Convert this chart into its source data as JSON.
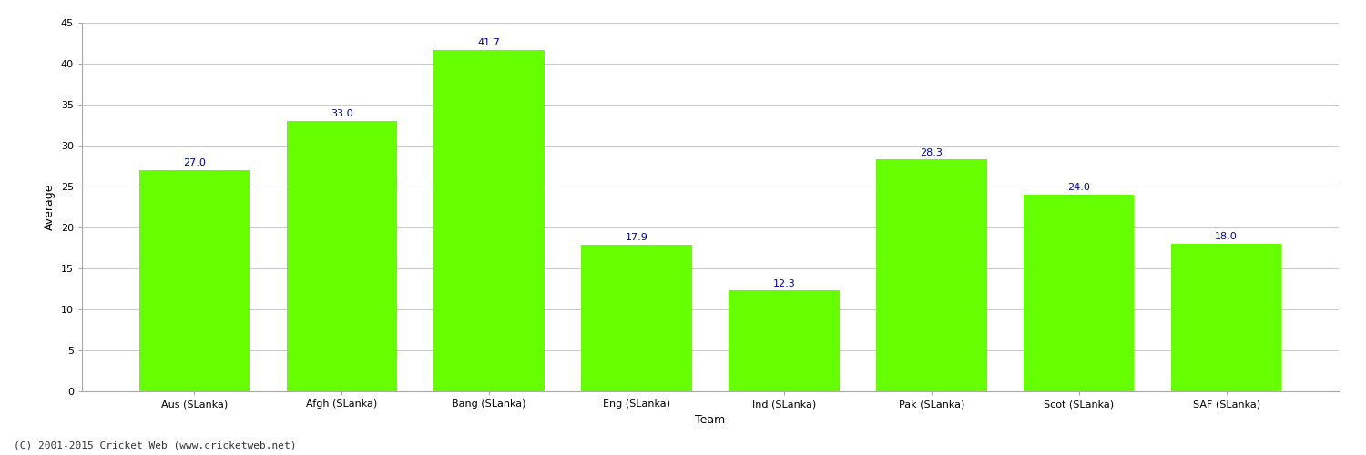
{
  "categories": [
    "Aus (SLanka)",
    "Afgh (SLanka)",
    "Bang (SLanka)",
    "Eng (SLanka)",
    "Ind (SLanka)",
    "Pak (SLanka)",
    "Scot (SLanka)",
    "SAF (SLanka)"
  ],
  "values": [
    27.0,
    33.0,
    41.7,
    17.9,
    12.3,
    28.3,
    24.0,
    18.0
  ],
  "bar_color": "#66FF00",
  "bar_edge_color": "#66FF00",
  "label_color": "#000099",
  "ylabel": "Average",
  "xlabel": "Team",
  "ylim": [
    0,
    45
  ],
  "yticks": [
    0,
    5,
    10,
    15,
    20,
    25,
    30,
    35,
    40,
    45
  ],
  "background_color": "#ffffff",
  "grid_color": "#cccccc",
  "label_fontsize": 8,
  "axis_label_fontsize": 9,
  "tick_fontsize": 8,
  "footer_text": "(C) 2001-2015 Cricket Web (www.cricketweb.net)",
  "footer_fontsize": 8
}
